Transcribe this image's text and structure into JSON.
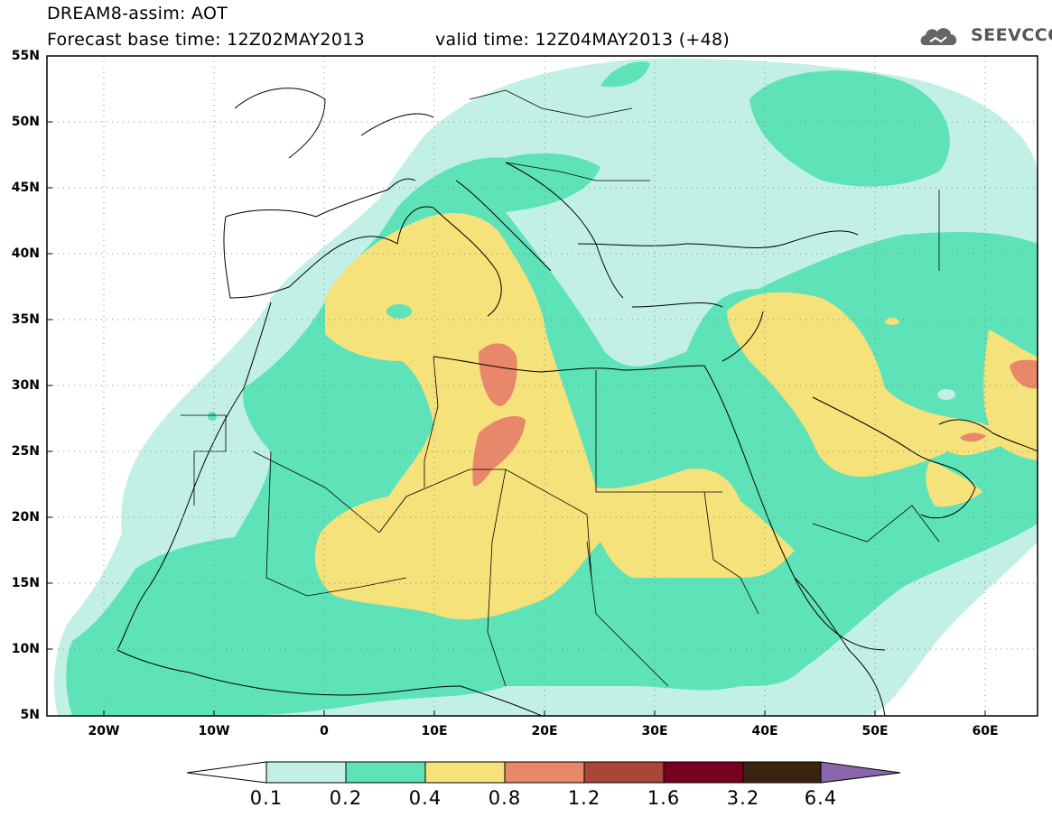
{
  "header": {
    "title": "DREAM8-assim: AOT",
    "forecast_base": "Forecast base time: 12Z02MAY2013",
    "valid_time": "valid time: 12Z04MAY2013 (+48)",
    "logo_text": "SEEVCCC"
  },
  "axes": {
    "lat_labels": [
      "55N",
      "50N",
      "45N",
      "40N",
      "35N",
      "30N",
      "25N",
      "20N",
      "15N",
      "10N",
      "5N"
    ],
    "lon_labels": [
      "20W",
      "10W",
      "0",
      "10E",
      "20E",
      "30E",
      "40E",
      "50E",
      "60E"
    ]
  },
  "colorbar": {
    "labels": [
      "0.1",
      "0.2",
      "0.4",
      "0.8",
      "1.2",
      "1.6",
      "3.2",
      "6.4"
    ],
    "colors": [
      "#c2f0e6",
      "#5ee2b8",
      "#f5e27a",
      "#e8876a",
      "#a8463a",
      "#7a0022",
      "#3a2410",
      "#8a66aa"
    ]
  },
  "palette": {
    "light_cyan": "#c2f0e6",
    "green": "#5ee2b8",
    "yellow": "#f5e27a",
    "salmon": "#e8876a"
  },
  "icons": [
    "cloud-logo-icon"
  ]
}
